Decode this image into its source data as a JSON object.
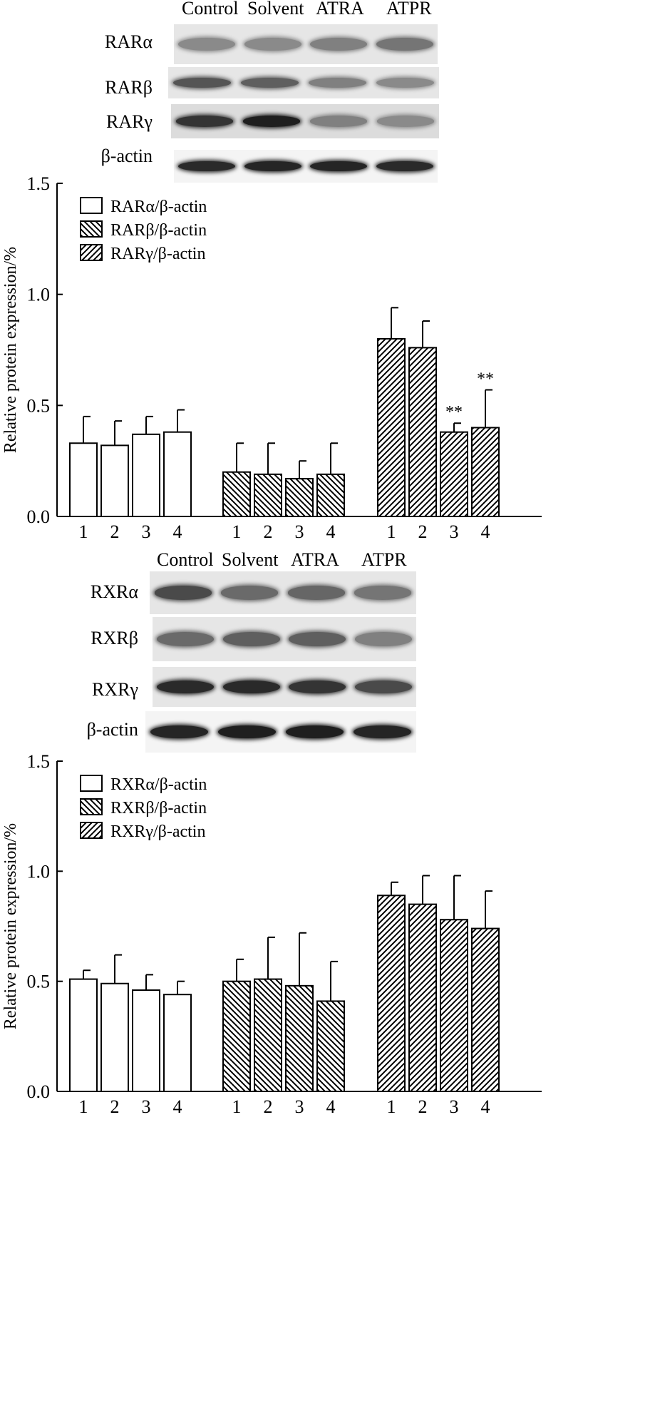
{
  "figures": [
    {
      "lanes": [
        "Control",
        "Solvent",
        "ATRA",
        "ATPR"
      ],
      "rows": [
        {
          "label": "RARα",
          "intensity": [
            0.45,
            0.45,
            0.5,
            0.55
          ]
        },
        {
          "label": "RARβ",
          "intensity": [
            0.7,
            0.65,
            0.5,
            0.45
          ]
        },
        {
          "label": "RARγ",
          "intensity": [
            0.85,
            0.95,
            0.5,
            0.45
          ]
        },
        {
          "label": "β-actin",
          "intensity": [
            0.9,
            0.92,
            0.92,
            0.9
          ]
        }
      ]
    },
    {
      "lanes": [
        "Control",
        "Solvent",
        "ATRA",
        "ATPR"
      ],
      "rows": [
        {
          "label": "RXRα",
          "intensity": [
            0.75,
            0.6,
            0.62,
            0.55
          ]
        },
        {
          "label": "RXRβ",
          "intensity": [
            0.6,
            0.65,
            0.65,
            0.5
          ]
        },
        {
          "label": "RXRγ",
          "intensity": [
            0.9,
            0.9,
            0.85,
            0.75
          ]
        },
        {
          "label": "β-actin",
          "intensity": [
            0.92,
            0.95,
            0.95,
            0.92
          ]
        }
      ]
    }
  ],
  "chart_data": [
    {
      "type": "bar",
      "ylabel": "Relative  protein expression/%",
      "ylim": [
        0,
        1.5
      ],
      "yticks": [
        "0.0",
        "0.5",
        "1.0",
        "1.5"
      ],
      "categories": [
        "1",
        "2",
        "3",
        "4"
      ],
      "legend_position": "top-left",
      "series": [
        {
          "name": "RARα/β-actin",
          "pattern": "open",
          "values": [
            0.33,
            0.32,
            0.37,
            0.38
          ],
          "errors": [
            0.12,
            0.11,
            0.08,
            0.1
          ],
          "marks": [
            "",
            "",
            "",
            ""
          ]
        },
        {
          "name": "RARβ/β-actin",
          "pattern": "backslash",
          "values": [
            0.2,
            0.19,
            0.17,
            0.19
          ],
          "errors": [
            0.13,
            0.14,
            0.08,
            0.14
          ],
          "marks": [
            "",
            "",
            "",
            ""
          ]
        },
        {
          "name": "RARγ/β-actin",
          "pattern": "slash",
          "values": [
            0.8,
            0.76,
            0.38,
            0.4
          ],
          "errors": [
            0.14,
            0.12,
            0.04,
            0.17
          ],
          "marks": [
            "",
            "",
            "**",
            "**"
          ]
        }
      ]
    },
    {
      "type": "bar",
      "ylabel": "Relative  protein expression/%",
      "ylim": [
        0,
        1.5
      ],
      "yticks": [
        "0.0",
        "0.5",
        "1.0",
        "1.5"
      ],
      "categories": [
        "1",
        "2",
        "3",
        "4"
      ],
      "legend_position": "top-left",
      "series": [
        {
          "name": "RXRα/β-actin",
          "pattern": "open",
          "values": [
            0.51,
            0.49,
            0.46,
            0.44
          ],
          "errors": [
            0.04,
            0.13,
            0.07,
            0.06
          ],
          "marks": [
            "",
            "",
            "",
            ""
          ]
        },
        {
          "name": "RXRβ/β-actin",
          "pattern": "backslash",
          "values": [
            0.5,
            0.51,
            0.48,
            0.41
          ],
          "errors": [
            0.1,
            0.19,
            0.24,
            0.18
          ],
          "marks": [
            "",
            "",
            "",
            ""
          ]
        },
        {
          "name": "RXRγ/β-actin",
          "pattern": "slash",
          "values": [
            0.89,
            0.85,
            0.78,
            0.74
          ],
          "errors": [
            0.06,
            0.13,
            0.2,
            0.17
          ],
          "marks": [
            "",
            "",
            "",
            ""
          ]
        }
      ]
    }
  ]
}
